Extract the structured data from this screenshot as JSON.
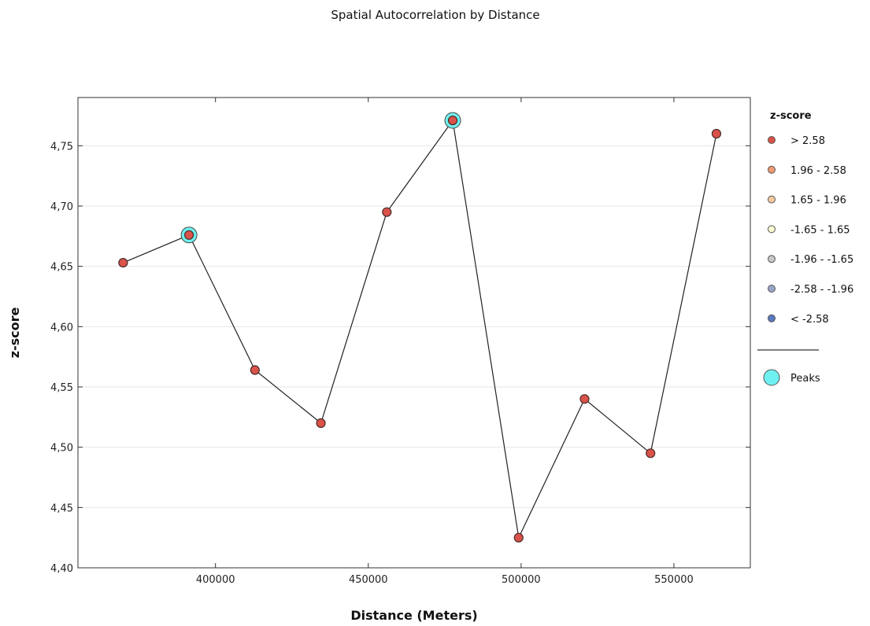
{
  "chart_data": {
    "type": "line",
    "title": "Spatial Autocorrelation by Distance",
    "xlabel": "Distance (Meters)",
    "ylabel": "z-score",
    "xlim": [
      355000,
      575000
    ],
    "ylim": [
      4.4,
      4.79
    ],
    "x_ticks": [
      400000,
      450000,
      500000,
      550000
    ],
    "x_tick_labels": [
      "400000",
      "450000",
      "500000",
      "550000"
    ],
    "y_ticks": [
      4.4,
      4.45,
      4.5,
      4.55,
      4.6,
      4.65,
      4.7,
      4.75
    ],
    "y_tick_labels": [
      "4,40",
      "4,45",
      "4,50",
      "4,55",
      "4,60",
      "4,65",
      "4,70",
      "4,75"
    ],
    "grid": "horizontal",
    "series": [
      {
        "x": [
          369780,
          391350,
          412920,
          434490,
          456060,
          477630,
          499200,
          520770,
          542340,
          563910
        ],
        "y": [
          4.653,
          4.676,
          4.564,
          4.52,
          4.695,
          4.771,
          4.425,
          4.54,
          4.495,
          4.76
        ],
        "color": "#d9534a"
      }
    ],
    "peaks": [
      {
        "x": 391350,
        "y": 4.676
      },
      {
        "x": 477630,
        "y": 4.771
      }
    ],
    "peak_color": "#6ff0f0",
    "legend": {
      "position": "right",
      "title": "z-score",
      "items": [
        {
          "label": "> 2.58",
          "color": "#d9534a"
        },
        {
          "label": "1.96 - 2.58",
          "color": "#ef9a6f"
        },
        {
          "label": "1.65 - 1.96",
          "color": "#f5c8a0"
        },
        {
          "label": "-1.65 - 1.65",
          "color": "#fafad2"
        },
        {
          "label": "-1.96 - -1.65",
          "color": "#c8c8c8"
        },
        {
          "label": "-2.58 - -1.96",
          "color": "#9aa6c8"
        },
        {
          "label": "< -2.58",
          "color": "#5b7bc0"
        }
      ],
      "peaks_label": "Peaks"
    }
  }
}
